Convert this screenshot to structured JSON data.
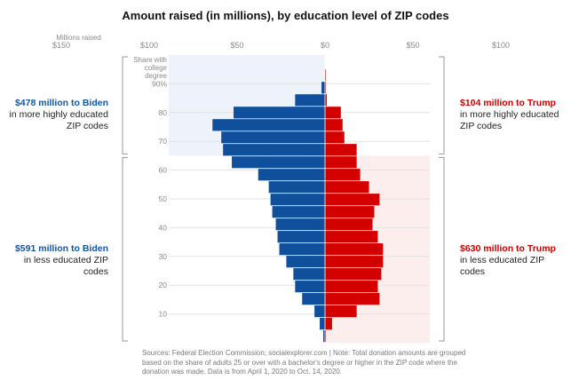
{
  "title": "Amount raised (in millions), by education level of ZIP codes",
  "colors": {
    "biden": "#0f4f9c",
    "trump": "#d40000",
    "biden_text": "#1356a6",
    "trump_text": "#cc0000",
    "biden_shade": "#eef2fb",
    "trump_shade": "#fdeeee",
    "gridline": "#e3e3e3",
    "axis_text": "#8a8a8a"
  },
  "annotations": {
    "top_left": {
      "highlight": "$478 million to Biden",
      "text": "in more highly educated ZIP codes"
    },
    "top_right": {
      "highlight": "$104 million to Trump",
      "text": "in more highly educated ZIP codes"
    },
    "bottom_left": {
      "highlight": "$591 million to Biden",
      "text": "in less educated ZIP codes"
    },
    "bottom_right": {
      "highlight": "$630 million to Trump",
      "text": "in less educated ZIP codes"
    }
  },
  "sources": "Sources: Federal Election Commission; socialexplorer.com | Note: Total donation amounts are grouped based on the share of adults 25 or over with a bachelor's degree or higher in the ZIP code where the donation was made. Data is from April 1, 2020 to Oct. 14, 2020.",
  "chart_data": {
    "type": "bar",
    "orientation": "horizontal-diverging",
    "x_axis_title": "Millions raised",
    "x_ticks": [
      {
        "value": -150,
        "label": "$150"
      },
      {
        "value": -100,
        "label": "$100"
      },
      {
        "value": -50,
        "label": "$50"
      },
      {
        "value": 0,
        "label": "$0"
      },
      {
        "value": 50,
        "label": "$50"
      },
      {
        "value": 100,
        "label": "$100"
      }
    ],
    "xlim": [
      -160,
      110
    ],
    "y_axis_title": "Share with college degree",
    "y_ticks": [
      {
        "value": 10,
        "label": "10"
      },
      {
        "value": 20,
        "label": "20"
      },
      {
        "value": 30,
        "label": "30"
      },
      {
        "value": 40,
        "label": "40"
      },
      {
        "value": 50,
        "label": "50"
      },
      {
        "value": 60,
        "label": "60"
      },
      {
        "value": 70,
        "label": "70"
      },
      {
        "value": 80,
        "label": "80"
      },
      {
        "value": 90,
        "label": "90%"
      }
    ],
    "ylim": [
      0,
      100
    ],
    "threshold": 65,
    "series": [
      {
        "name": "Biden",
        "side": "left",
        "values": [
          1,
          3,
          6,
          13,
          17,
          18,
          22,
          26,
          27,
          28,
          30,
          31,
          32,
          38,
          53,
          58,
          59,
          64,
          52,
          17,
          2,
          0
        ]
      },
      {
        "name": "Trump",
        "side": "right",
        "values": [
          0.5,
          4,
          18,
          31,
          30,
          32,
          33,
          33,
          30,
          27,
          28,
          31,
          25,
          20,
          18,
          18,
          11,
          10,
          9,
          1,
          0.5,
          0.5
        ]
      }
    ]
  }
}
